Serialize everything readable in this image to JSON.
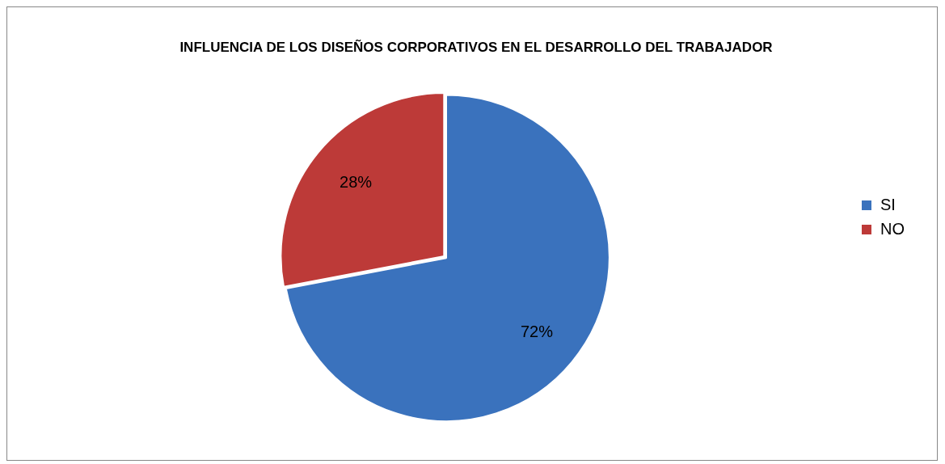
{
  "chart_data": {
    "type": "pie",
    "title": "INFLUENCIA DE LOS DISEÑOS CORPORATIVOS EN EL DESARROLLO DEL TRABAJADOR",
    "categories": [
      "SI",
      "NO"
    ],
    "values": [
      72,
      28
    ],
    "colors": [
      "#3a72bd",
      "#bd3a38"
    ],
    "value_labels": [
      "72%",
      "28%"
    ],
    "legend": "right"
  }
}
